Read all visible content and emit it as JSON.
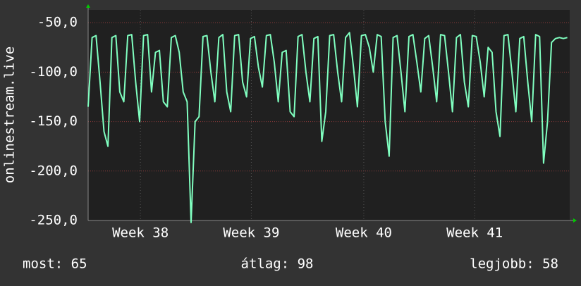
{
  "chart_data": {
    "type": "line",
    "y_label": "onlinestream.live",
    "stats": [
      "most: 65",
      "átlag: 98",
      "legjobb: 58"
    ],
    "ylim": [
      -250,
      -37
    ],
    "yticks": [
      {
        "value": -50,
        "label": "-50,0"
      },
      {
        "value": -100,
        "label": "-100,0"
      },
      {
        "value": -150,
        "label": "-150,0"
      },
      {
        "value": -200,
        "label": "-200,0"
      },
      {
        "value": -250,
        "label": "-250,0"
      }
    ],
    "xlim": [
      0,
      30.4
    ],
    "xticks": [
      {
        "value": 3.3,
        "label": "Week 38"
      },
      {
        "value": 10.3,
        "label": "Week 39"
      },
      {
        "value": 17.4,
        "label": "Week 40"
      },
      {
        "value": 24.4,
        "label": "Week 41"
      }
    ],
    "grid": true,
    "x": [
      0,
      0.25,
      0.5,
      0.75,
      1,
      1.25,
      1.5,
      1.75,
      2,
      2.25,
      2.5,
      2.75,
      3,
      3.25,
      3.5,
      3.75,
      4,
      4.25,
      4.5,
      4.75,
      5,
      5.25,
      5.5,
      5.75,
      6,
      6.25,
      6.5,
      6.75,
      7,
      7.25,
      7.5,
      7.75,
      8,
      8.25,
      8.5,
      8.75,
      9,
      9.25,
      9.5,
      9.75,
      10,
      10.25,
      10.5,
      10.75,
      11,
      11.25,
      11.5,
      11.75,
      12,
      12.25,
      12.5,
      12.75,
      13,
      13.25,
      13.5,
      13.75,
      14,
      14.25,
      14.5,
      14.75,
      15,
      15.25,
      15.5,
      15.75,
      16,
      16.25,
      16.5,
      16.75,
      17,
      17.25,
      17.5,
      17.75,
      18,
      18.25,
      18.5,
      18.75,
      19,
      19.25,
      19.5,
      19.75,
      20,
      20.25,
      20.5,
      20.75,
      21,
      21.25,
      21.5,
      21.75,
      22,
      22.25,
      22.5,
      22.75,
      23,
      23.25,
      23.5,
      23.75,
      24,
      24.25,
      24.5,
      24.75,
      25,
      25.25,
      25.5,
      25.75,
      26,
      26.25,
      26.5,
      26.75,
      27,
      27.25,
      27.5,
      27.75,
      28,
      28.25,
      28.5,
      28.75,
      29,
      29.25,
      29.5,
      29.75,
      30,
      30.25
    ],
    "series": [
      {
        "color": "#80ffc0",
        "values": [
          -135,
          -65,
          -63,
          -110,
          -160,
          -175,
          -65,
          -63,
          -120,
          -130,
          -63,
          -62,
          -110,
          -150,
          -63,
          -62,
          -120,
          -80,
          -78,
          -130,
          -135,
          -65,
          -63,
          -80,
          -120,
          -130,
          -252,
          -150,
          -145,
          -64,
          -63,
          -100,
          -130,
          -65,
          -62,
          -120,
          -140,
          -63,
          -62,
          -110,
          -125,
          -66,
          -64,
          -95,
          -115,
          -63,
          -62,
          -90,
          -130,
          -80,
          -78,
          -140,
          -145,
          -64,
          -62,
          -100,
          -130,
          -66,
          -64,
          -170,
          -140,
          -63,
          -62,
          -100,
          -130,
          -65,
          -60,
          -95,
          -135,
          -63,
          -62,
          -75,
          -100,
          -62,
          -64,
          -150,
          -185,
          -65,
          -63,
          -100,
          -140,
          -64,
          -62,
          -90,
          -120,
          -66,
          -63,
          -95,
          -130,
          -62,
          -63,
          -100,
          -140,
          -65,
          -62,
          -110,
          -135,
          -63,
          -64,
          -90,
          -125,
          -75,
          -80,
          -140,
          -165,
          -63,
          -62,
          -100,
          -140,
          -66,
          -64,
          -110,
          -150,
          -62,
          -64,
          -192,
          -150,
          -70,
          -66,
          -65,
          -66,
          -65
        ]
      }
    ]
  }
}
